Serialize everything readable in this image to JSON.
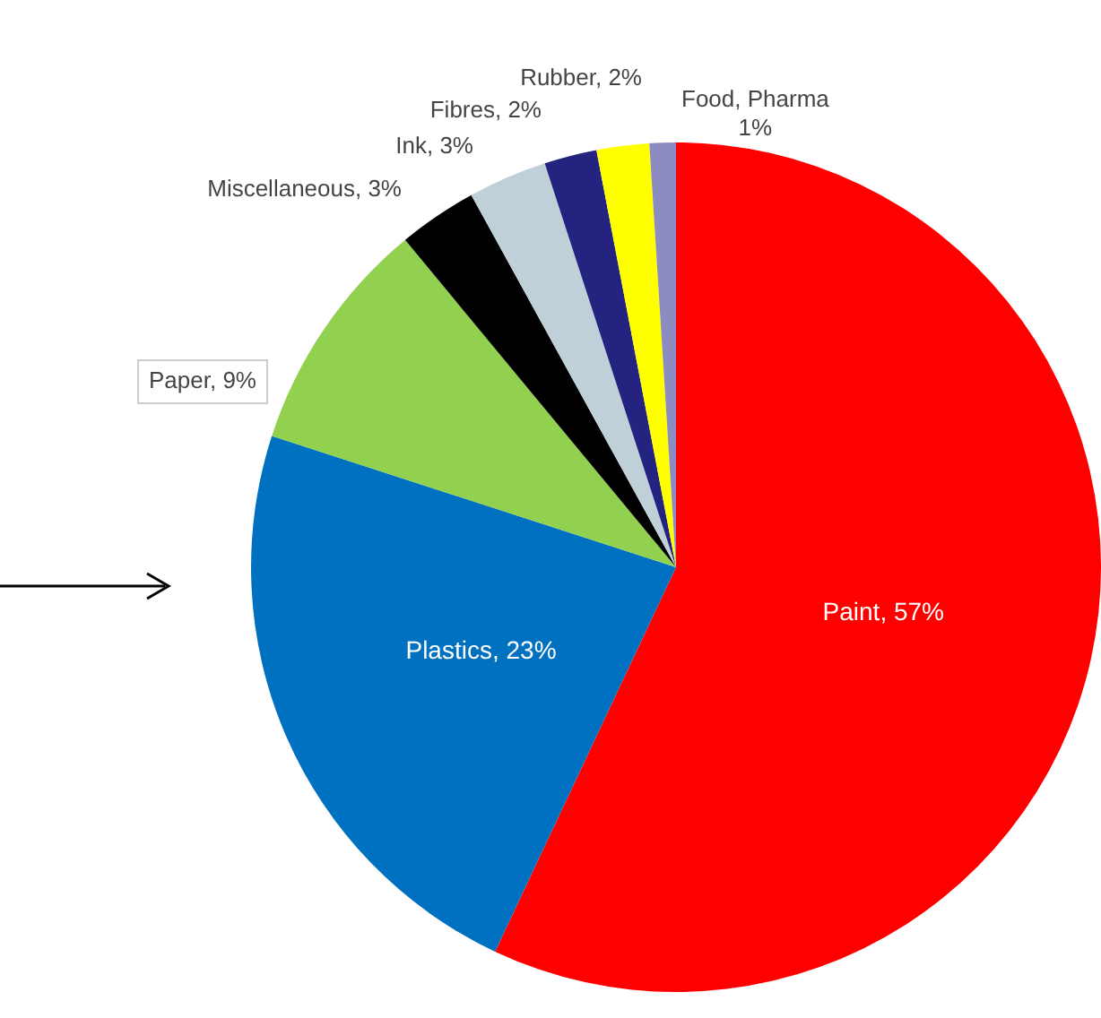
{
  "chart_data": {
    "type": "pie",
    "categories": [
      "Paint, 57%",
      "Plastics, 23%",
      "Paper, 9%",
      "Miscellaneous, 3%",
      "Ink, 3%",
      "Fibres, 2%",
      "Rubber, 2%",
      "Food, Pharma 1%"
    ],
    "values": [
      57,
      23,
      9,
      3,
      3,
      2,
      2,
      1
    ],
    "colors": [
      "#ff0000",
      "#0070c0",
      "#92d050",
      "#000000",
      "#c0d0d8",
      "#242480",
      "#ffff00",
      "#8c8cc0"
    ],
    "legend": false
  }
}
